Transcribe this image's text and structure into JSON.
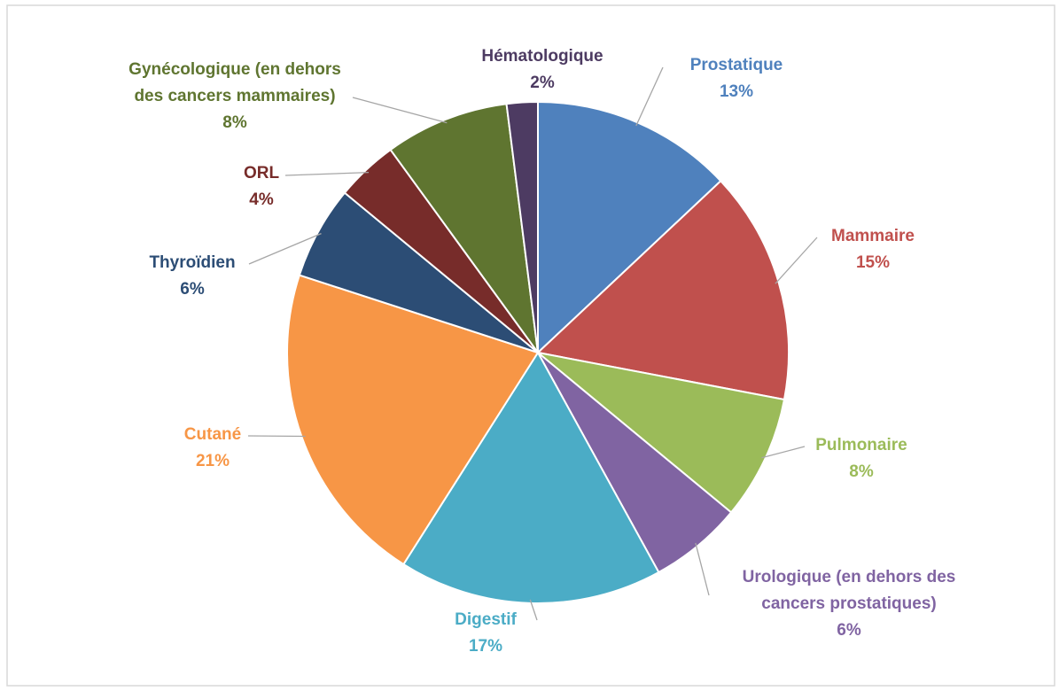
{
  "chart_data": {
    "type": "pie",
    "categories": [
      "Prostatique",
      "Mammaire",
      "Pulmonaire",
      "Urologique (en dehors des cancers prostatiques)",
      "Digestif",
      "Cutané",
      "Thyroïdien",
      "ORL",
      "Gynécologique (en dehors des cancers mammaires)",
      "Hématologique"
    ],
    "values": [
      13,
      15,
      8,
      6,
      17,
      21,
      6,
      4,
      8,
      2
    ],
    "value_labels": [
      "13%",
      "15%",
      "8%",
      "6%",
      "17%",
      "21%",
      "6%",
      "4%",
      "8%",
      "2%"
    ],
    "colors": [
      "#4f81bd",
      "#c0504d",
      "#9bbb59",
      "#8064a2",
      "#4bacc6",
      "#f79646",
      "#2c4d75",
      "#772c2a",
      "#5f7530",
      "#4d3b62"
    ]
  }
}
